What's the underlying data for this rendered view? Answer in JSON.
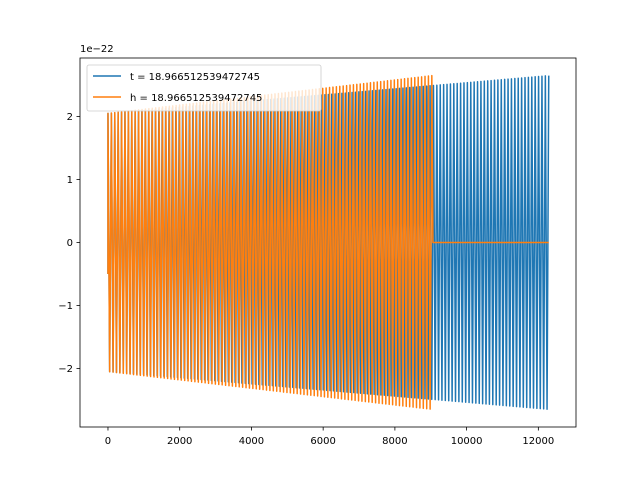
{
  "chart_data": {
    "type": "line",
    "offset_text": "1e−22",
    "x_ticks": [
      0,
      2000,
      4000,
      6000,
      8000,
      10000,
      12000
    ],
    "x_tick_labels": [
      "0",
      "2000",
      "4000",
      "6000",
      "8000",
      "10000",
      "12000"
    ],
    "y_ticks": [
      -2,
      -1,
      0,
      1,
      2
    ],
    "y_tick_labels": [
      "−2",
      "−1",
      "0",
      "1",
      "2"
    ],
    "xlim": [
      -780,
      13050
    ],
    "ylim": [
      -2.93,
      2.93
    ],
    "y_scale": "1e-22",
    "grid": false,
    "legend_position": "upper-left",
    "series": [
      {
        "name": "t = 18.966512539472745",
        "color": "#1f77b4",
        "x_start": 0,
        "x_end": 12290,
        "envelope_start": 2.05,
        "envelope_end": 2.65,
        "cycles": 130
      },
      {
        "name": "h = 18.966512539472745",
        "color": "#ff7f0e",
        "x_start": 0,
        "x_end": 9030,
        "envelope_start": 2.05,
        "envelope_end": 2.65,
        "cycles": 95,
        "flat_after": {
          "x_start": 9060,
          "x_end": 12290,
          "value": 0
        }
      }
    ]
  }
}
